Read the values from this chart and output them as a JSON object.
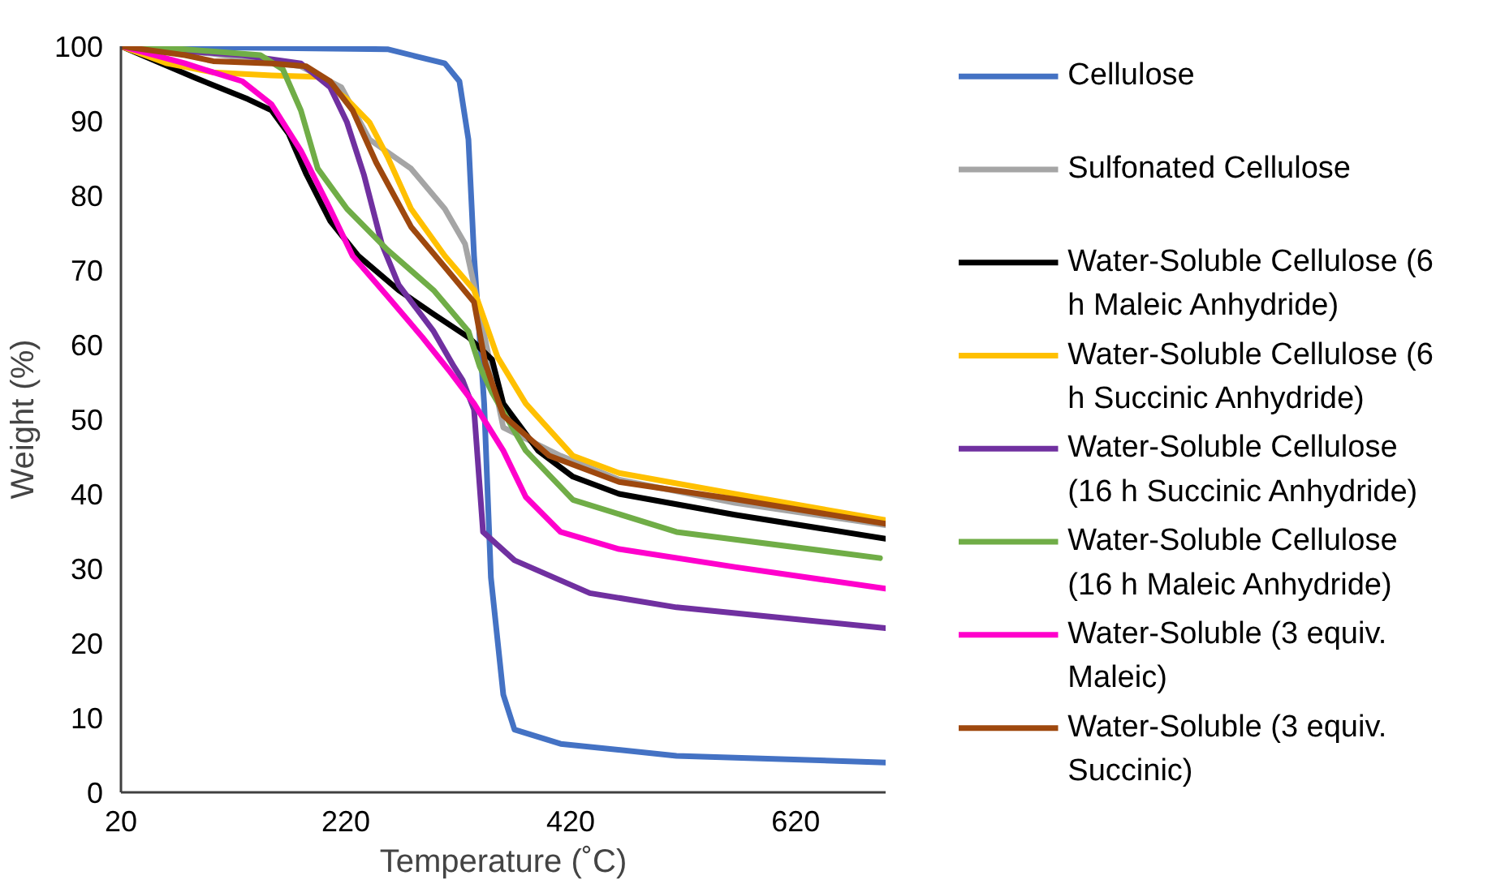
{
  "chart_data": {
    "type": "line",
    "xlabel": "Temperature (˚C)",
    "ylabel": "Weight (%)",
    "xlim": [
      20,
      700
    ],
    "xticks": [
      20,
      220,
      420,
      620
    ],
    "ylim": [
      0,
      100
    ],
    "yticks": [
      0,
      10,
      20,
      30,
      40,
      50,
      60,
      70,
      80,
      90,
      100
    ],
    "grid": false,
    "legend": "right",
    "marker": "none",
    "line_style": "solid",
    "series": [
      {
        "name": "Cellulose",
        "color": "#4472c4",
        "x": [
          20,
          257,
          308,
          321,
          329,
          334,
          343,
          349,
          360,
          370,
          411,
          514,
          700
        ],
        "values": [
          100,
          99.6,
          97.7,
          95.3,
          87.5,
          71.9,
          52.1,
          28.8,
          13.1,
          8.4,
          6.5,
          4.9,
          4.0
        ]
      },
      {
        "name": "Sulfonated Cellulose",
        "color": "#a5a5a5",
        "x": [
          20,
          102,
          180,
          216,
          241,
          278,
          308,
          326,
          334,
          360,
          411,
          463,
          566,
          700
        ],
        "values": [
          100,
          99,
          97.3,
          94.5,
          87.5,
          83.6,
          78.2,
          73.5,
          68,
          48.9,
          45.1,
          41.9,
          38.8,
          35.8
        ]
      },
      {
        "name": "Water-Soluble Cellulose (6 h Maleic Anhydride)",
        "color": "#000000",
        "x": [
          20,
          51,
          87,
          133,
          154,
          169,
          185,
          206,
          231,
          267,
          298,
          329,
          350,
          360,
          391,
          422,
          463,
          566,
          700
        ],
        "values": [
          100,
          98,
          95.7,
          92.9,
          91.4,
          88.3,
          82.8,
          76.6,
          71.9,
          67.3,
          64.1,
          61,
          58,
          52.1,
          45.8,
          42.3,
          40,
          37.2,
          34
        ]
      },
      {
        "name": "Water-Soluble Cellulose (6 h Succinic Anhydride)",
        "color": "#ffc000",
        "x": [
          20,
          61,
          102,
          154,
          195,
          221,
          241,
          257,
          278,
          308,
          334,
          355,
          380,
          422,
          463,
          566,
          700
        ],
        "values": [
          100,
          97.7,
          96.5,
          96.1,
          95.9,
          92.9,
          89.8,
          85.2,
          78.2,
          71.9,
          67.3,
          58.3,
          52.1,
          45.1,
          42.8,
          40,
          36.5
        ]
      },
      {
        "name": "Water-Soluble Cellulose (16 h Succinic Anhydride)",
        "color": "#7030a0",
        "x": [
          20,
          128,
          180,
          206,
          221,
          236,
          252,
          267,
          298,
          316,
          324,
          334,
          342,
          370,
          437,
          514,
          700
        ],
        "values": [
          100,
          98.8,
          97.7,
          94.5,
          89.8,
          82.8,
          73.5,
          68,
          61.8,
          57.1,
          55.2,
          51.3,
          34.9,
          31.1,
          26.7,
          24.8,
          22.0
        ]
      },
      {
        "name": "Water-Soluble Cellulose (16 h Maleic Anhydride)",
        "color": "#70ad47",
        "x": [
          20,
          77,
          144,
          164,
          180,
          195,
          221,
          257,
          298,
          329,
          339,
          350,
          380,
          422,
          514,
          695
        ],
        "values": [
          100,
          99.6,
          98.8,
          96.9,
          91.4,
          83.6,
          78.2,
          72.7,
          67.3,
          61.8,
          57.1,
          53.6,
          45.8,
          39.2,
          34.9,
          31.4
        ]
      },
      {
        "name": "Water-Soluble (3 equiv. Maleic)",
        "color": "#ff00cc",
        "x": [
          20,
          77,
          102,
          128,
          154,
          180,
          206,
          226,
          257,
          288,
          313,
          334,
          360,
          380,
          411,
          463,
          566,
          700
        ],
        "values": [
          100,
          97.7,
          96.5,
          95.3,
          92.2,
          86,
          78.2,
          71.9,
          66.5,
          61,
          56.3,
          52.1,
          45.8,
          39.6,
          34.9,
          32.6,
          30.2,
          27.3
        ]
      },
      {
        "name": "Water-Soluble (3 equiv. Succinic)",
        "color": "#9e480e",
        "x": [
          20,
          77,
          102,
          154,
          185,
          206,
          226,
          247,
          278,
          308,
          334,
          344,
          360,
          401,
          463,
          566,
          700
        ],
        "values": [
          100,
          98.8,
          98,
          97.7,
          97.3,
          95.3,
          91.4,
          84.4,
          75.8,
          70.4,
          65.7,
          57.5,
          50.5,
          45.1,
          41.6,
          39.3,
          36
        ]
      }
    ]
  }
}
